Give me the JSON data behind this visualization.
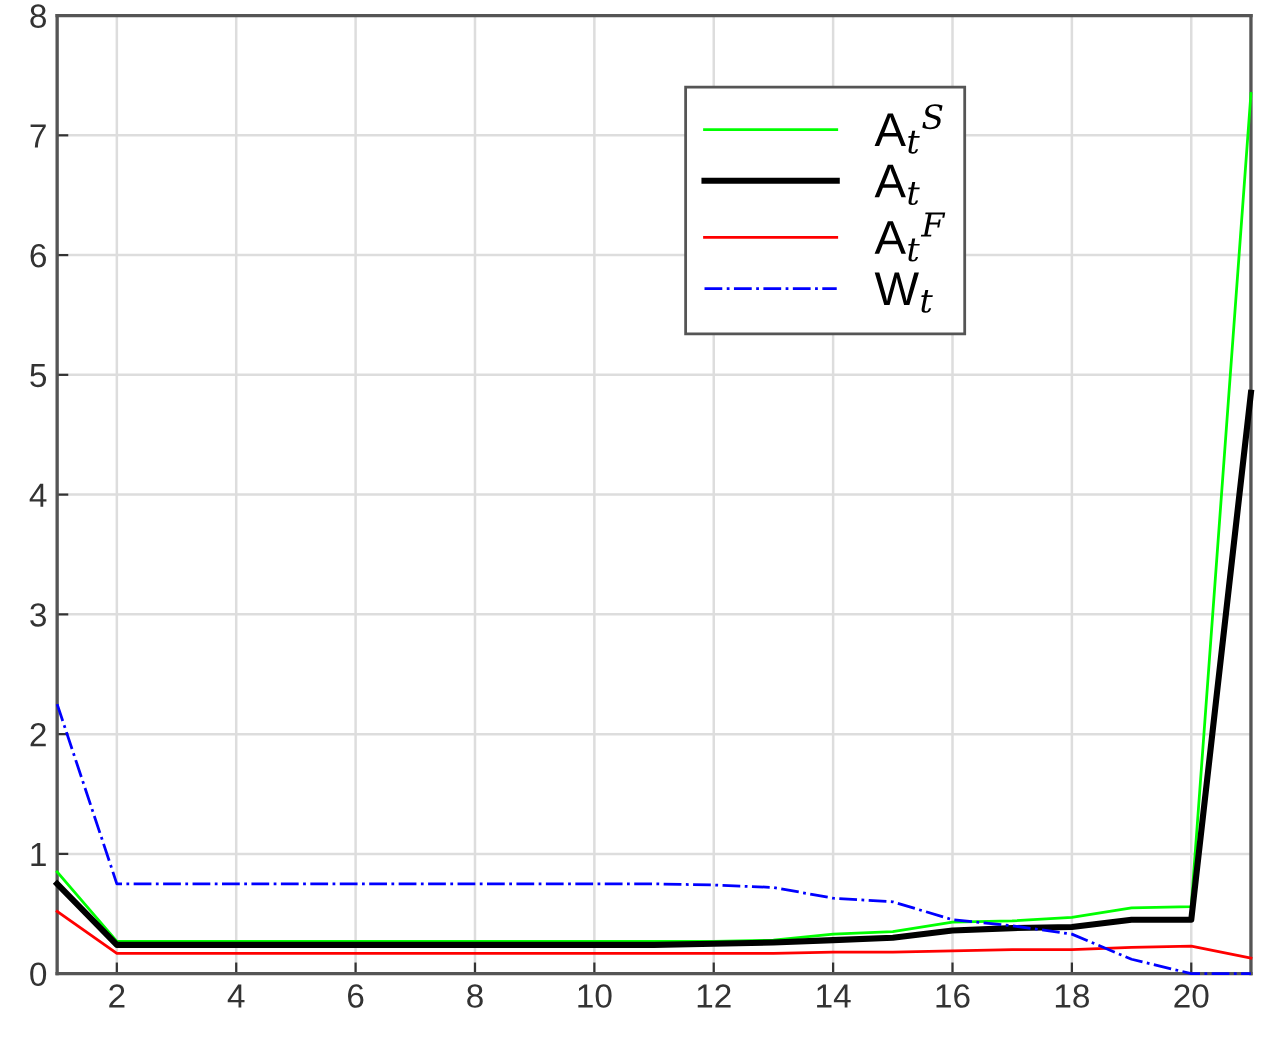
{
  "chart_data": {
    "type": "line",
    "x": [
      1,
      2,
      3,
      4,
      5,
      6,
      7,
      8,
      9,
      10,
      11,
      12,
      13,
      14,
      15,
      16,
      17,
      18,
      19,
      20,
      21
    ],
    "series": [
      {
        "name": "A$_{t}$$^{S}$",
        "color": "#00ff00",
        "values": [
          0.85,
          0.27,
          0.27,
          0.27,
          0.27,
          0.27,
          0.27,
          0.27,
          0.27,
          0.27,
          0.27,
          0.27,
          0.28,
          0.33,
          0.35,
          0.43,
          0.44,
          0.47,
          0.55,
          0.56,
          7.35
        ]
      },
      {
        "name": "A$_{t}$",
        "color": "#000000",
        "values": [
          0.75,
          0.24,
          0.24,
          0.24,
          0.24,
          0.24,
          0.24,
          0.24,
          0.24,
          0.24,
          0.24,
          0.25,
          0.26,
          0.28,
          0.3,
          0.36,
          0.38,
          0.39,
          0.45,
          0.45,
          4.85
        ]
      },
      {
        "name": "A$_{t}$$^{F}$",
        "color": "#ff0000",
        "values": [
          0.52,
          0.17,
          0.17,
          0.17,
          0.17,
          0.17,
          0.17,
          0.17,
          0.17,
          0.17,
          0.17,
          0.17,
          0.17,
          0.18,
          0.18,
          0.19,
          0.2,
          0.2,
          0.22,
          0.23,
          0.13
        ]
      },
      {
        "name": "W$_{t}$",
        "color": "#0000ff",
        "line_style": "dashdot",
        "values": [
          2.25,
          0.75,
          0.75,
          0.75,
          0.75,
          0.75,
          0.75,
          0.75,
          0.75,
          0.75,
          0.75,
          0.74,
          0.72,
          0.63,
          0.6,
          0.45,
          0.4,
          0.33,
          0.12,
          0.0,
          0.0
        ]
      }
    ],
    "xlim": [
      1,
      21
    ],
    "ylim": [
      0,
      8
    ],
    "xticks": [
      2,
      4,
      6,
      8,
      10,
      12,
      14,
      16,
      18,
      20
    ],
    "yticks": [
      0,
      1,
      2,
      3,
      4,
      5,
      6,
      7,
      8
    ],
    "grid": true,
    "legend": "top right",
    "marker": "none"
  }
}
